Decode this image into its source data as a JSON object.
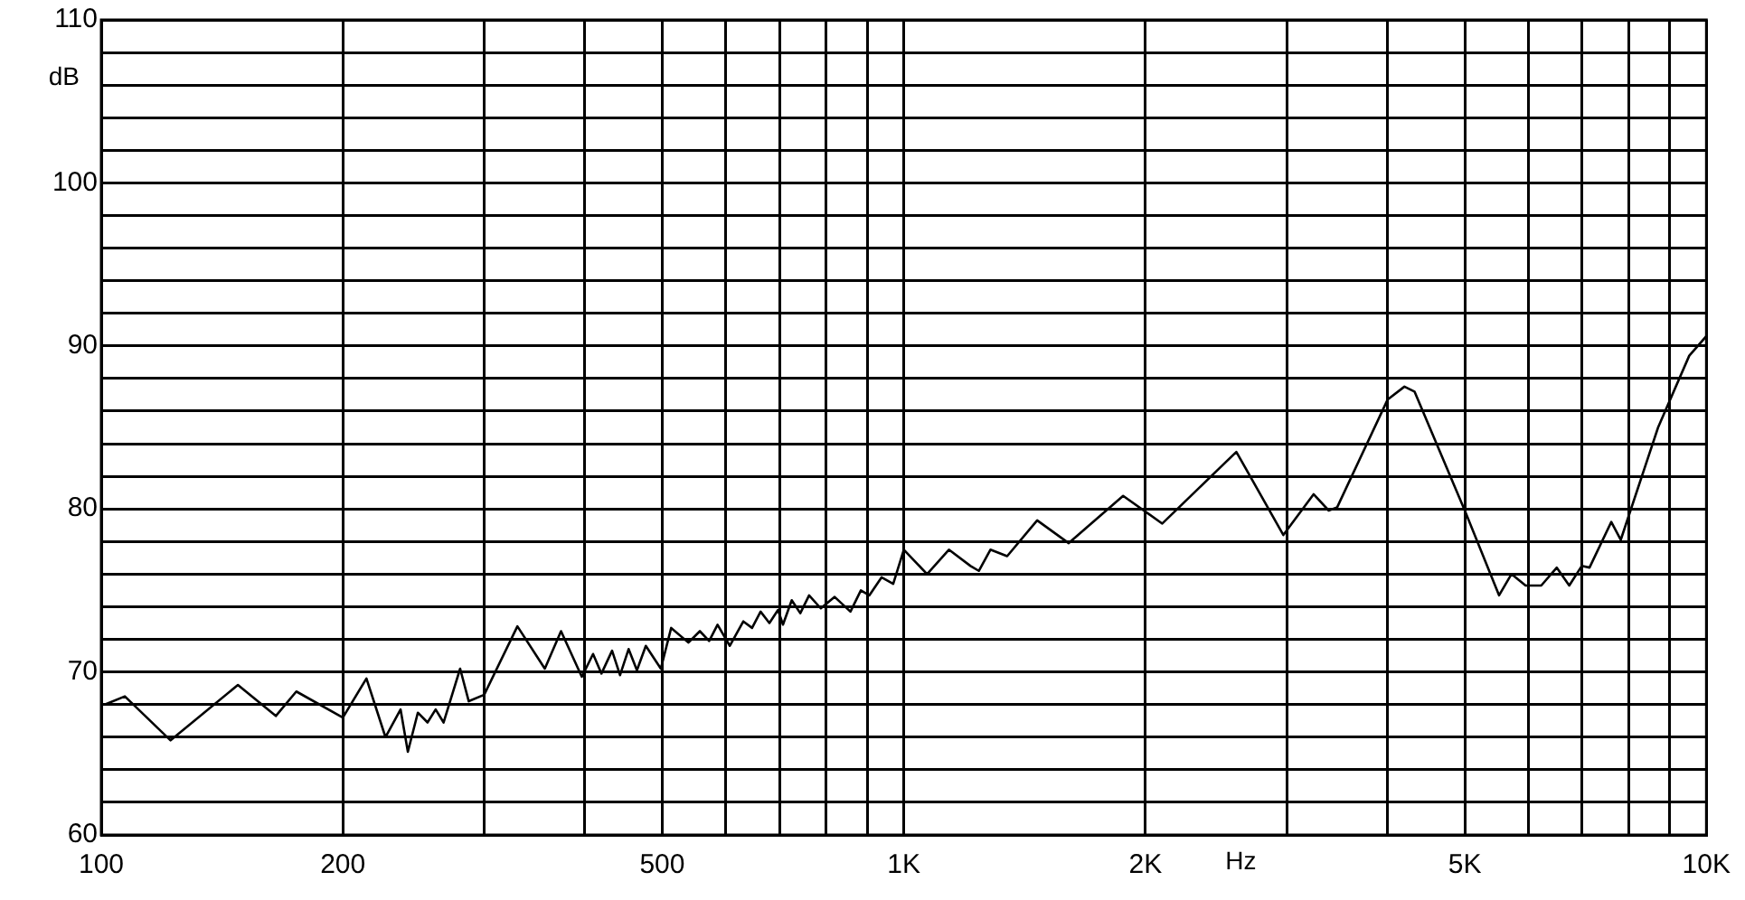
{
  "chart_data": {
    "type": "line",
    "xlabel": "Hz",
    "ylabel": "dB",
    "log": "x",
    "grid": true,
    "legend": false,
    "marker": "none",
    "line_style": "solid",
    "xlim": [
      100,
      10000
    ],
    "ylim": [
      60,
      110
    ],
    "xticks": [
      100,
      200,
      {
        "value": 300,
        "label": null
      },
      {
        "value": 400,
        "label": null
      },
      500,
      {
        "value": 600,
        "label": null
      },
      {
        "value": 700,
        "label": null
      },
      {
        "value": 800,
        "label": null
      },
      {
        "value": 900,
        "label": null
      },
      {
        "value": 1000,
        "label": "1K"
      },
      {
        "value": 2000,
        "label": "2K"
      },
      {
        "value": 3000,
        "label": null
      },
      {
        "value": 4000,
        "label": null
      },
      {
        "value": 5000,
        "label": "5K"
      },
      {
        "value": 6000,
        "label": null
      },
      {
        "value": 7000,
        "label": null
      },
      {
        "value": 8000,
        "label": null
      },
      {
        "value": 9000,
        "label": null
      },
      {
        "value": 10000,
        "label": "10K"
      }
    ],
    "yticks": [
      60,
      {
        "value": 62,
        "label": null
      },
      {
        "value": 64,
        "label": null
      },
      {
        "value": 66,
        "label": null
      },
      {
        "value": 68,
        "label": null
      },
      70,
      {
        "value": 72,
        "label": null
      },
      {
        "value": 74,
        "label": null
      },
      {
        "value": 76,
        "label": null
      },
      {
        "value": 78,
        "label": null
      },
      80,
      {
        "value": 82,
        "label": null
      },
      {
        "value": 84,
        "label": null
      },
      {
        "value": 86,
        "label": null
      },
      {
        "value": 88,
        "label": null
      },
      90,
      {
        "value": 92,
        "label": null
      },
      {
        "value": 94,
        "label": null
      },
      {
        "value": 96,
        "label": null
      },
      {
        "value": 98,
        "label": null
      },
      100,
      {
        "value": 102,
        "label": null
      },
      {
        "value": 104,
        "label": null
      },
      {
        "value": 106,
        "label": null
      },
      {
        "value": 108,
        "label": null
      },
      110
    ],
    "series": [
      {
        "color": "#000000",
        "x": [
          101,
          107,
          122,
          148,
          165,
          175,
          200,
          214,
          226,
          236,
          241,
          248,
          255,
          261,
          267,
          280,
          287,
          300,
          330,
          357,
          374,
          397,
          410,
          420,
          433,
          443,
          454,
          465,
          477,
          498,
          513,
          539,
          557,
          572,
          586,
          607,
          631,
          647,
          663,
          680,
          697,
          707,
          725,
          743,
          762,
          788,
          820,
          858,
          884,
          906,
          938,
          970,
          1000,
          1069,
          1138,
          1211,
          1240,
          1282,
          1345,
          1466,
          1605,
          1876,
          2099,
          2596,
          2971,
          3240,
          3384,
          3467,
          4006,
          4205,
          4328,
          5000,
          5516,
          5716,
          5953,
          6226,
          6510,
          6747,
          6993,
          7151,
          7612,
          7821,
          8706,
          9520,
          10000
        ],
        "values": [
          68.0,
          68.5,
          65.8,
          69.2,
          67.3,
          68.8,
          67.2,
          69.6,
          66.0,
          67.7,
          65.1,
          67.5,
          66.9,
          67.7,
          66.9,
          70.2,
          68.2,
          68.6,
          72.8,
          70.2,
          72.5,
          69.7,
          71.1,
          69.9,
          71.3,
          69.8,
          71.4,
          70.1,
          71.6,
          70.2,
          72.7,
          71.8,
          72.5,
          71.9,
          72.9,
          71.6,
          73.1,
          72.7,
          73.7,
          73.0,
          73.8,
          72.9,
          74.4,
          73.6,
          74.7,
          73.9,
          74.6,
          73.7,
          75.0,
          74.7,
          75.8,
          75.4,
          77.5,
          76.0,
          77.5,
          76.5,
          76.2,
          77.5,
          77.1,
          79.3,
          77.9,
          80.8,
          79.1,
          83.5,
          78.4,
          80.9,
          79.9,
          80.1,
          86.7,
          87.5,
          87.2,
          79.9,
          74.7,
          76.0,
          75.3,
          75.3,
          76.4,
          75.3,
          76.5,
          76.4,
          79.2,
          78.1,
          85.0,
          89.4,
          90.6
        ]
      }
    ]
  }
}
